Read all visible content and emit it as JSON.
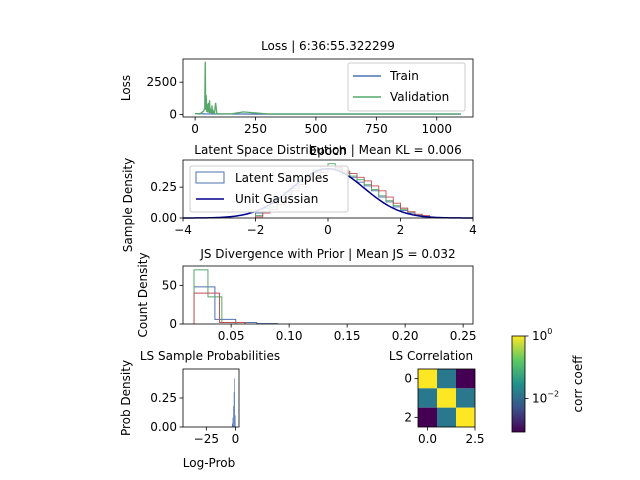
{
  "chart_data": [
    {
      "type": "line",
      "title": "Loss | 6:36:55.322299",
      "xlabel": "Epoch",
      "ylabel": "Loss",
      "xlim": [
        -50,
        1150
      ],
      "ylim": [
        -200,
        4300
      ],
      "xticks": [
        0,
        250,
        500,
        750,
        1000
      ],
      "xtick_labels": [
        "0",
        "250",
        "500",
        "750",
        "1000"
      ],
      "yticks": [
        0,
        2500
      ],
      "ytick_labels": [
        "0",
        "2500"
      ],
      "legend": "top-right",
      "series": [
        {
          "name": "Train",
          "color": "#4c72b0",
          "x": [
            0,
            40,
            100,
            200,
            400,
            700,
            1100
          ],
          "y": [
            70,
            45,
            35,
            30,
            28,
            27,
            26
          ]
        },
        {
          "name": "Validation",
          "color": "#55a868",
          "x": [
            0,
            20,
            35,
            40,
            42,
            44,
            46,
            48,
            50,
            52,
            55,
            58,
            60,
            62,
            65,
            68,
            70,
            72,
            75,
            78,
            80,
            85,
            90,
            100,
            120,
            150,
            200,
            300,
            500,
            800,
            1100
          ],
          "y": [
            60,
            40,
            250,
            500,
            4100,
            350,
            1500,
            200,
            800,
            150,
            900,
            120,
            1100,
            100,
            300,
            90,
            700,
            80,
            250,
            70,
            60,
            900,
            60,
            50,
            45,
            40,
            200,
            35,
            30,
            30,
            30
          ]
        }
      ]
    },
    {
      "type": "area",
      "title": "Latent Space Distribution | Mean KL = 0.006",
      "xlabel": "",
      "ylabel": "Sample Density",
      "xlim": [
        -4,
        4
      ],
      "ylim": [
        0,
        0.47
      ],
      "xticks": [
        -4,
        -2,
        0,
        2,
        4
      ],
      "xtick_labels": [
        "−4",
        "−2",
        "0",
        "2",
        "4"
      ],
      "yticks": [
        0,
        0.25
      ],
      "ytick_labels": [
        "0.00",
        "0.25"
      ],
      "legend": "top-left",
      "bin_edges": [
        -2.0,
        -1.8,
        -1.6,
        -1.4,
        -1.2,
        -1.0,
        -0.8,
        -0.6,
        -0.4,
        -0.2,
        0.0,
        0.2,
        0.4,
        0.6,
        0.8,
        1.0,
        1.2,
        1.4,
        1.6,
        1.8,
        2.0,
        2.2,
        2.4,
        2.6,
        2.8
      ],
      "series": [
        {
          "name": "Latent Samples",
          "color": "#4c72b0",
          "values": [
            0.04,
            0.08,
            0.12,
            0.16,
            0.21,
            0.26,
            0.3,
            0.34,
            0.37,
            0.4,
            0.4,
            0.39,
            0.36,
            0.33,
            0.29,
            0.26,
            0.22,
            0.17,
            0.13,
            0.09,
            0.06,
            0.04,
            0.02,
            0.01
          ]
        },
        {
          "name": "",
          "color": "#55a868",
          "values": [
            0.02,
            0.05,
            0.09,
            0.14,
            0.19,
            0.24,
            0.29,
            0.35,
            0.39,
            0.42,
            0.44,
            0.4,
            0.37,
            0.34,
            0.31,
            0.27,
            0.23,
            0.18,
            0.14,
            0.1,
            0.07,
            0.05,
            0.03,
            0.01
          ]
        },
        {
          "name": "",
          "color": "#c44e52",
          "values": [
            0.01,
            0.04,
            0.07,
            0.11,
            0.16,
            0.22,
            0.27,
            0.31,
            0.34,
            0.37,
            0.4,
            0.41,
            0.38,
            0.36,
            0.33,
            0.3,
            0.26,
            0.22,
            0.17,
            0.12,
            0.08,
            0.05,
            0.03,
            0.02
          ]
        }
      ],
      "gaussian": {
        "name": "Unit Gaussian",
        "color": "#00008b",
        "mean": 0,
        "std": 1
      }
    },
    {
      "type": "bar",
      "title": "JS Divergence with Prior | Mean JS = 0.032",
      "xlabel": "",
      "ylabel": "Count Density",
      "xlim": [
        0.0085,
        0.2585
      ],
      "ylim": [
        0,
        75
      ],
      "xticks": [
        0.05,
        0.1,
        0.15,
        0.2,
        0.25
      ],
      "xtick_labels": [
        "0.05",
        "0.10",
        "0.15",
        "0.20",
        "0.25"
      ],
      "yticks": [
        0,
        50
      ],
      "ytick_labels": [
        "0",
        "50"
      ],
      "series": [
        {
          "name": "",
          "color": "#4c72b0",
          "edges": [
            0.018,
            0.036,
            0.054,
            0.072,
            0.09
          ],
          "values": [
            48,
            6,
            2,
            0.5
          ]
        },
        {
          "name": "",
          "color": "#55a868",
          "edges": [
            0.018,
            0.03,
            0.042,
            0.054
          ],
          "values": [
            70,
            35,
            2
          ]
        },
        {
          "name": "",
          "color": "#c44e52",
          "edges": [
            0.018,
            0.04,
            0.062
          ],
          "values": [
            40,
            2
          ]
        }
      ]
    },
    {
      "type": "bar",
      "title": "LS Sample Probabilities",
      "xlabel": "Log-Prob",
      "ylabel": "Prob Density",
      "xlim": [
        -45,
        3
      ],
      "ylim": [
        0,
        0.5
      ],
      "xticks": [
        -25,
        0
      ],
      "xtick_labels": [
        "−25",
        "0"
      ],
      "yticks": [
        0,
        0.25
      ],
      "ytick_labels": [
        "0.00",
        "0.25"
      ],
      "color": "#4c72b0",
      "edges": [
        -3.0,
        -2.5,
        -2.0,
        -1.5,
        -1.0,
        -0.5,
        0.0
      ],
      "values": [
        0.03,
        0.08,
        0.18,
        0.3,
        0.42,
        0.1
      ]
    },
    {
      "type": "heatmap",
      "title": "LS Correlation",
      "xlim": [
        -0.5,
        2.5
      ],
      "ylim": [
        2.5,
        -0.5
      ],
      "xticks": [
        0,
        2.5
      ],
      "xtick_labels": [
        "0.0",
        "2.5"
      ],
      "yticks": [
        0,
        2
      ],
      "ytick_labels": [
        "0",
        "2"
      ],
      "matrix": [
        [
          "#fde725",
          "#2a788e",
          "#440154"
        ],
        [
          "#2a788e",
          "#fde725",
          "#2a788e"
        ],
        [
          "#440154",
          "#2a788e",
          "#fde725"
        ]
      ],
      "colorbar": {
        "label": "corr coeff",
        "scale": "log",
        "ticks": [
          {
            "base": "10",
            "exp": "0",
            "frac": 1.0
          },
          {
            "base": "10",
            "exp": "−2",
            "frac": 0.35
          }
        ],
        "colors": [
          "#440154",
          "#3b528b",
          "#21918c",
          "#5ec962",
          "#fde725"
        ]
      }
    }
  ]
}
